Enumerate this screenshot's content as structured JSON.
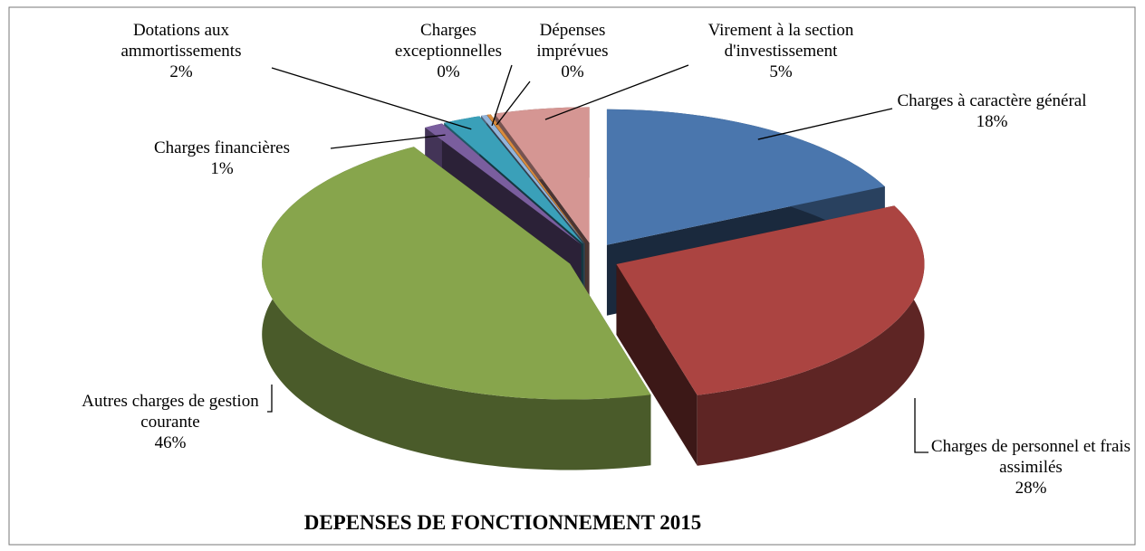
{
  "chart_data": {
    "type": "pie",
    "title": "DEPENSES DE FONCTIONNEMENT  2015",
    "categories": [
      "Charges à caractère général",
      "Charges de personnel et frais assimilés",
      "Autres charges de gestion courante",
      "Charges financières",
      "Dotations aux ammortissements",
      "Charges exceptionnelles",
      "Dépenses imprévues",
      "Virement à la section d'investissement"
    ],
    "values": [
      18,
      28,
      46,
      1,
      2,
      0.3,
      0.2,
      5
    ],
    "value_labels": [
      "18%",
      "28%",
      "46%",
      "1%",
      "2%",
      "0%",
      "0%",
      "5%"
    ],
    "colors": [
      "#4a76ad",
      "#ab4441",
      "#87a54c",
      "#7a5e9e",
      "#3aa0b9",
      "#93b4da",
      "#d98b3c",
      "#d59693"
    ]
  }
}
